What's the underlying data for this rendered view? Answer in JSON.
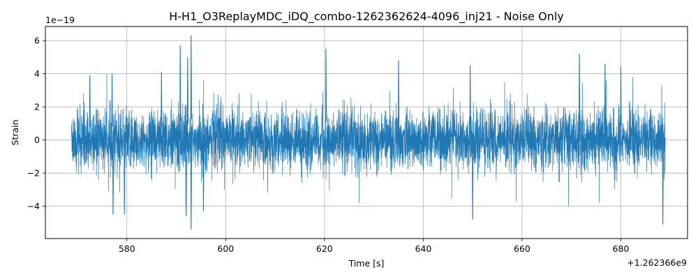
{
  "chart_data": {
    "type": "line",
    "title": "H-H1_O3ReplayMDC_iDQ_combo-1262362624-4096_inj21 - Noise Only",
    "xlabel": "Time [s]",
    "ylabel": "Strain",
    "x_offset_label": "+1.262366e9",
    "y_scale_label": "1e−19",
    "xlim": [
      563.5,
      693.5
    ],
    "ylim": [
      -5.95,
      6.85
    ],
    "x_ticks": [
      580,
      600,
      620,
      640,
      660,
      680
    ],
    "y_ticks": [
      -4,
      -2,
      0,
      2,
      4,
      6
    ],
    "x_tick_labels": [
      "580",
      "600",
      "620",
      "640",
      "660",
      "680"
    ],
    "y_tick_labels": [
      "−4",
      "−2",
      "0",
      "2",
      "4",
      "6"
    ],
    "grid": true,
    "series": [
      {
        "color": "#1f77b4",
        "x_range": [
          568.8,
          689.0
        ],
        "typical_envelope": 2.0,
        "peaks": [
          {
            "x": 572.5,
            "y": 3.9
          },
          {
            "x": 577.0,
            "y": 4.0
          },
          {
            "x": 587.0,
            "y": 4.1
          },
          {
            "x": 590.8,
            "y": 5.7
          },
          {
            "x": 593.0,
            "y": 6.3
          },
          {
            "x": 592.3,
            "y": 5.0
          },
          {
            "x": 620.3,
            "y": 5.5
          },
          {
            "x": 635.0,
            "y": 4.8
          },
          {
            "x": 649.5,
            "y": 4.5
          },
          {
            "x": 671.6,
            "y": 5.2
          },
          {
            "x": 676.8,
            "y": 4.6
          },
          {
            "x": 680.0,
            "y": 4.4
          }
        ],
        "troughs": [
          {
            "x": 577.2,
            "y": -4.5
          },
          {
            "x": 579.5,
            "y": -4.5
          },
          {
            "x": 592.0,
            "y": -4.6
          },
          {
            "x": 593.0,
            "y": -5.4
          },
          {
            "x": 595.5,
            "y": -4.3
          },
          {
            "x": 650.0,
            "y": -4.8
          },
          {
            "x": 688.5,
            "y": -5.1
          }
        ]
      }
    ]
  }
}
